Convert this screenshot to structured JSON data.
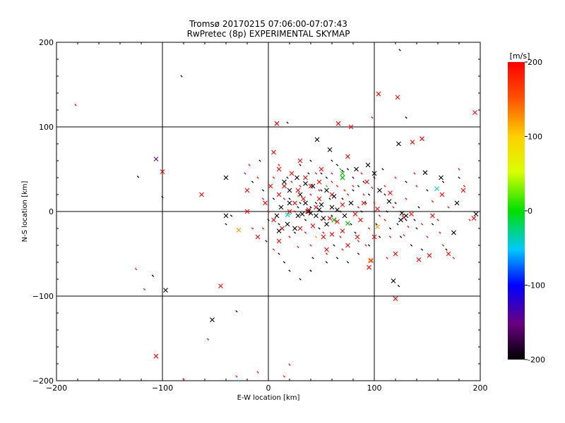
{
  "chart_data": {
    "type": "scatter",
    "title": "Tromsø 20170215 07:06:00-07:07:43",
    "subtitle": "RwPretec (8p) EXPERIMENTAL SKYMAP",
    "xlabel": "E-W location [km]",
    "ylabel": "N-S location [km]",
    "xlim": [
      -200,
      200
    ],
    "ylim": [
      -200,
      200
    ],
    "xticks": [
      "-200",
      "-100",
      "0",
      "100",
      "200"
    ],
    "yticks": [
      "-200",
      "-100",
      "0",
      "100",
      "200"
    ],
    "grid": true,
    "colorbar": {
      "unit": "[m/s]",
      "min": -200,
      "max": 200,
      "ticks": [
        "-200",
        "-100",
        "0",
        "100",
        "200"
      ]
    },
    "colors": {
      "red": "#ff0000",
      "black": "#000000",
      "orange": "#ff9900",
      "green": "#00cc00",
      "cyan": "#00cccc",
      "purple": "#6a0080"
    },
    "series": [
      {
        "marker": "cross",
        "color": "red",
        "points": [
          [
            104,
            139
          ],
          [
            122,
            135
          ],
          [
            195,
            117
          ],
          [
            66,
            104
          ],
          [
            8,
            104
          ],
          [
            78,
            100
          ],
          [
            145,
            86
          ],
          [
            136,
            82
          ],
          [
            -100,
            47
          ],
          [
            -63,
            20
          ],
          [
            -45,
            -88
          ],
          [
            -106,
            -171
          ],
          [
            194,
            -8
          ],
          [
            170,
            -50
          ],
          [
            184,
            25
          ],
          [
            164,
            20
          ],
          [
            155,
            -5
          ],
          [
            152,
            -52
          ],
          [
            142,
            -57
          ],
          [
            120,
            -103
          ],
          [
            97,
            -58
          ],
          [
            95,
            -66
          ],
          [
            93,
            35
          ],
          [
            90,
            10
          ],
          [
            87,
            -10
          ],
          [
            84,
            -30
          ],
          [
            75,
            -40
          ],
          [
            70,
            -23
          ],
          [
            65,
            -12
          ],
          [
            60,
            -27
          ],
          [
            55,
            -45
          ],
          [
            52,
            -30
          ],
          [
            48,
            15
          ],
          [
            45,
            5
          ],
          [
            42,
            -17
          ],
          [
            40,
            30
          ],
          [
            37,
            0
          ],
          [
            35,
            40
          ],
          [
            30,
            -20
          ],
          [
            28,
            25
          ],
          [
            25,
            10
          ],
          [
            22,
            45
          ],
          [
            20,
            0
          ],
          [
            15,
            30
          ],
          [
            13,
            -20
          ],
          [
            10,
            50
          ],
          [
            10,
            20
          ],
          [
            5,
            -10
          ],
          [
            2,
            30
          ],
          [
            -3,
            10
          ],
          [
            -10,
            -30
          ],
          [
            -20,
            0
          ],
          [
            -20,
            25
          ],
          [
            5,
            70
          ],
          [
            30,
            60
          ],
          [
            50,
            50
          ],
          [
            75,
            65
          ],
          [
            100,
            -30
          ],
          [
            120,
            -50
          ],
          [
            115,
            22
          ],
          [
            10,
            -35
          ],
          [
            60,
            20
          ],
          [
            48,
            35
          ],
          [
            33,
            15
          ],
          [
            38,
            2
          ],
          [
            58,
            -8
          ],
          [
            70,
            8
          ],
          [
            82,
            -3
          ],
          [
            103,
            3
          ],
          [
            128,
            -7
          ],
          [
            135,
            -3
          ]
        ]
      },
      {
        "marker": "cross",
        "color": "black",
        "points": [
          [
            46,
            85
          ],
          [
            58,
            73
          ],
          [
            123,
            80
          ],
          [
            148,
            46
          ],
          [
            163,
            40
          ],
          [
            178,
            10
          ],
          [
            175,
            -25
          ],
          [
            196,
            -3
          ],
          [
            130,
            -5
          ],
          [
            125,
            -10
          ],
          [
            118,
            -82
          ],
          [
            -97,
            -93
          ],
          [
            -53,
            -128
          ],
          [
            -40,
            40
          ],
          [
            -40,
            -5
          ],
          [
            83,
            50
          ],
          [
            70,
            40
          ],
          [
            62,
            18
          ],
          [
            55,
            25
          ],
          [
            50,
            8
          ],
          [
            45,
            -5
          ],
          [
            42,
            30
          ],
          [
            38,
            0
          ],
          [
            35,
            10
          ],
          [
            30,
            20
          ],
          [
            28,
            -5
          ],
          [
            25,
            -20
          ],
          [
            20,
            10
          ],
          [
            18,
            -15
          ],
          [
            15,
            35
          ],
          [
            12,
            5
          ],
          [
            10,
            -23
          ],
          [
            8,
            -5
          ],
          [
            55,
            -15
          ],
          [
            62,
            -10
          ],
          [
            65,
            2
          ],
          [
            72,
            -5
          ],
          [
            78,
            10
          ],
          [
            32,
            -3
          ],
          [
            40,
            -2
          ],
          [
            48,
            2
          ],
          [
            52,
            -8
          ],
          [
            60,
            5
          ],
          [
            35,
            33
          ],
          [
            27,
            40
          ],
          [
            20,
            25
          ],
          [
            94,
            55
          ],
          [
            105,
            25
          ],
          [
            114,
            12
          ],
          [
            126,
            -2
          ],
          [
            100,
            45
          ]
        ]
      },
      {
        "marker": "cross",
        "color": "orange",
        "points": [
          [
            -28,
            -22
          ],
          [
            103,
            -18
          ],
          [
            96,
            -58
          ]
        ]
      },
      {
        "marker": "cross",
        "color": "cyan",
        "points": [
          [
            159,
            27
          ],
          [
            18,
            -4
          ]
        ]
      },
      {
        "marker": "cross",
        "color": "green",
        "points": [
          [
            70,
            45
          ],
          [
            70,
            40
          ],
          [
            62,
            -10
          ],
          [
            75,
            -14
          ]
        ]
      },
      {
        "marker": "cross",
        "color": "purple",
        "points": [
          [
            -106,
            62
          ]
        ]
      },
      {
        "marker": "tick",
        "color": "red",
        "points": [
          [
            -182,
            126
          ],
          [
            -125,
            -68
          ],
          [
            -117,
            -92
          ],
          [
            -80,
            -198
          ],
          [
            -57,
            -151
          ],
          [
            15,
            -195
          ],
          [
            -10,
            -190
          ],
          [
            20,
            -181
          ],
          [
            98,
            111
          ],
          [
            -30,
            -195
          ],
          [
            10,
            55
          ],
          [
            5,
            40
          ],
          [
            -5,
            15
          ],
          [
            -15,
            -20
          ],
          [
            20,
            -30
          ],
          [
            40,
            -40
          ],
          [
            55,
            -50
          ],
          [
            70,
            -45
          ],
          [
            85,
            -35
          ],
          [
            90,
            20
          ],
          [
            100,
            10
          ],
          [
            110,
            -10
          ],
          [
            115,
            -30
          ],
          [
            130,
            15
          ],
          [
            140,
            30
          ],
          [
            150,
            -30
          ],
          [
            165,
            -40
          ],
          [
            175,
            -55
          ],
          [
            180,
            50
          ],
          [
            185,
            30
          ],
          [
            190,
            -10
          ],
          [
            30,
            30
          ],
          [
            45,
            45
          ],
          [
            60,
            45
          ],
          [
            25,
            0
          ],
          [
            50,
            -10
          ],
          [
            65,
            30
          ],
          [
            80,
            30
          ],
          [
            35,
            -25
          ],
          [
            15,
            15
          ],
          [
            0,
            0
          ],
          [
            -10,
            40
          ],
          [
            40,
            20
          ],
          [
            60,
            35
          ],
          [
            75,
            20
          ],
          [
            85,
            5
          ],
          [
            95,
            -20
          ],
          [
            105,
            -5
          ],
          [
            110,
            30
          ],
          [
            120,
            40
          ],
          [
            128,
            -28
          ],
          [
            145,
            -15
          ],
          [
            160,
            -10
          ],
          [
            170,
            5
          ],
          [
            22,
            35
          ],
          [
            48,
            25
          ],
          [
            68,
            -30
          ],
          [
            92,
            -40
          ],
          [
            112,
            -55
          ],
          [
            5,
            -45
          ],
          [
            -5,
            -20
          ],
          [
            -18,
            55
          ],
          [
            -22,
            45
          ],
          [
            28,
            -42
          ],
          [
            52,
            -25
          ],
          [
            72,
            25
          ],
          [
            88,
            45
          ],
          [
            98,
            28
          ],
          [
            118,
            5
          ],
          [
            132,
            -18
          ],
          [
            138,
            45
          ],
          [
            155,
            12
          ],
          [
            162,
            -25
          ]
        ]
      },
      {
        "marker": "tick",
        "color": "black",
        "points": [
          [
            -82,
            160
          ],
          [
            124,
            191
          ],
          [
            130,
            111
          ],
          [
            -123,
            41
          ],
          [
            -100,
            17
          ],
          [
            -109,
            -76
          ],
          [
            -30,
            -118
          ],
          [
            18,
            105
          ],
          [
            10,
            -50
          ],
          [
            15,
            -60
          ],
          [
            20,
            -70
          ],
          [
            30,
            -80
          ],
          [
            40,
            -70
          ],
          [
            55,
            -60
          ],
          [
            65,
            -55
          ],
          [
            75,
            -60
          ],
          [
            85,
            -50
          ],
          [
            95,
            -40
          ],
          [
            105,
            -30
          ],
          [
            115,
            -20
          ],
          [
            125,
            -30
          ],
          [
            135,
            -40
          ],
          [
            145,
            -45
          ],
          [
            155,
            -15
          ],
          [
            20,
            15
          ],
          [
            30,
            10
          ],
          [
            40,
            5
          ],
          [
            50,
            0
          ],
          [
            60,
            -5
          ],
          [
            70,
            15
          ],
          [
            80,
            25
          ],
          [
            90,
            35
          ],
          [
            100,
            40
          ],
          [
            110,
            20
          ],
          [
            120,
            10
          ],
          [
            130,
            -10
          ],
          [
            140,
            -20
          ],
          [
            5,
            15
          ],
          [
            -5,
            25
          ],
          [
            -15,
            35
          ],
          [
            0,
            -10
          ],
          [
            10,
            -15
          ],
          [
            25,
            -25
          ],
          [
            35,
            -10
          ],
          [
            45,
            10
          ],
          [
            55,
            40
          ],
          [
            65,
            55
          ],
          [
            75,
            50
          ],
          [
            85,
            30
          ],
          [
            95,
            20
          ],
          [
            130,
            35
          ],
          [
            -35,
            -5
          ],
          [
            -40,
            -15
          ],
          [
            30,
            55
          ],
          [
            40,
            60
          ],
          [
            50,
            45
          ],
          [
            60,
            60
          ],
          [
            70,
            48
          ],
          [
            80,
            40
          ],
          [
            180,
            40
          ],
          [
            123,
            -88
          ],
          [
            165,
            35
          ],
          [
            168,
            -45
          ],
          [
            50,
            25
          ],
          [
            28,
            5
          ],
          [
            38,
            45
          ],
          [
            58,
            15
          ],
          [
            88,
            0
          ],
          [
            102,
            -15
          ],
          [
            122,
            -15
          ],
          [
            142,
            5
          ],
          [
            -2,
            -35
          ],
          [
            18,
            40
          ],
          [
            42,
            -55
          ],
          [
            62,
            -40
          ],
          [
            82,
            -25
          ],
          [
            112,
            0
          ],
          [
            138,
            -10
          ],
          [
            150,
            25
          ],
          [
            -8,
            60
          ],
          [
            48,
            -20
          ],
          [
            68,
            0
          ],
          [
            78,
            -15
          ],
          [
            92,
            10
          ],
          [
            108,
            50
          ]
        ]
      },
      {
        "marker": "tick",
        "color": "cyan",
        "points": [
          [
            -28,
            -200
          ],
          [
            20,
            -3
          ]
        ]
      },
      {
        "marker": "tick",
        "color": "orange",
        "points": [
          [
            28,
            18
          ],
          [
            135,
            -2
          ],
          [
            45,
            -30
          ]
        ]
      },
      {
        "marker": "tick",
        "color": "green",
        "points": [
          [
            68,
            50
          ],
          [
            55,
            30
          ]
        ]
      }
    ]
  }
}
